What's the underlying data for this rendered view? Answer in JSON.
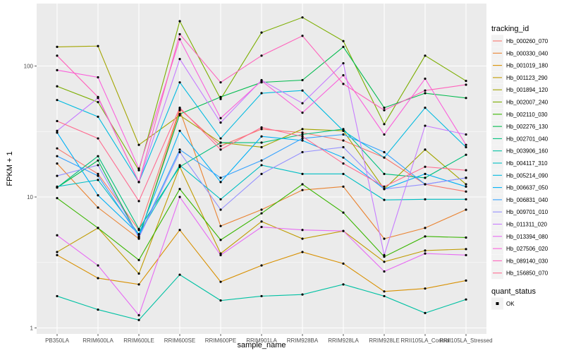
{
  "chart_data": {
    "type": "line",
    "title": "",
    "xlabel": "sample_name",
    "ylabel": "FPKM + 1",
    "y_scale": "log10",
    "ylim": [
      0.9,
      300
    ],
    "y_ticks": [
      1,
      10,
      100
    ],
    "y_tick_labels": [
      "1",
      "10",
      "100"
    ],
    "grid": true,
    "background": "#ebebeb",
    "legend_position": "right",
    "categories": [
      "PB350LA",
      "RRIM600LA",
      "RRIM600LE",
      "RRIM600SE",
      "RRIM600PE",
      "RRIM901LA",
      "RRIM928BA",
      "RRIM928LA",
      "RRIM928LE",
      "RRII105LA_Control",
      "RRII105LA_Stressed"
    ],
    "x_tick_labels": [
      "PB350LA",
      "RRIM600LA",
      "RRIM600LE",
      "RRIM600SE",
      "RRIM600PE",
      "RRIM901LA",
      "RRIM928BA",
      "RRIM928LA",
      "RRIM928LE",
      "RRII105LA_Control",
      "RRII105LA_Stressed"
    ],
    "legend": {
      "title": "tracking_id",
      "entries": [
        "Hb_000260_070",
        "Hb_000330_040",
        "Hb_001019_180",
        "Hb_001123_290",
        "Hb_001894_120",
        "Hb_002007_240",
        "Hb_002110_030",
        "Hb_002276_130",
        "Hb_002701_040",
        "Hb_003906_160",
        "Hb_004117_310",
        "Hb_005214_090",
        "Hb_006637_050",
        "Hb_006831_040",
        "Hb_009701_010",
        "Hb_011311_020",
        "Hb_013394_080",
        "Hb_027506_020",
        "Hb_089140_030",
        "Hb_156850_070"
      ]
    },
    "shape_legend": {
      "title": "quant_status",
      "entries": [
        "OK"
      ]
    },
    "series": [
      {
        "name": "Hb_000260_070",
        "color": "#F8766D",
        "values": [
          23.5,
          15,
          5.6,
          47,
          24.5,
          33,
          31,
          27,
          20,
          12.5,
          11
        ]
      },
      {
        "name": "Hb_000330_040",
        "color": "#EA8331",
        "values": [
          18,
          8.3,
          4.8,
          46,
          6,
          8,
          11.3,
          12,
          4.8,
          5.8,
          8
        ]
      },
      {
        "name": "Hb_001019_180",
        "color": "#D89000",
        "values": [
          3.6,
          2.4,
          2.15,
          5.6,
          2.25,
          3,
          3.8,
          3.1,
          1.9,
          2,
          2.3
        ]
      },
      {
        "name": "Hb_001123_290",
        "color": "#C09B00",
        "values": [
          3.8,
          5.8,
          2.6,
          17,
          3.7,
          6.5,
          4.8,
          5.5,
          3.2,
          3.9,
          4
        ]
      },
      {
        "name": "Hb_001894_120",
        "color": "#A3A500",
        "values": [
          140,
          142,
          25,
          42,
          26,
          24,
          33,
          32,
          11.5,
          23,
          12.5
        ]
      },
      {
        "name": "Hb_002007_240",
        "color": "#7CAE00",
        "values": [
          70,
          53,
          16,
          220,
          56,
          180,
          235,
          155,
          36,
          120,
          77
        ]
      },
      {
        "name": "Hb_002110_030",
        "color": "#39B600",
        "values": [
          9.8,
          5.8,
          3.3,
          11.5,
          4.7,
          7.5,
          12.5,
          7.6,
          3.5,
          5,
          4.9
        ]
      },
      {
        "name": "Hb_002276_130",
        "color": "#00BB4E",
        "values": [
          11.8,
          19,
          4.9,
          43,
          58,
          75,
          78,
          140,
          48,
          62,
          57
        ]
      },
      {
        "name": "Hb_002701_040",
        "color": "#00BF7D",
        "values": [
          11.8,
          20.5,
          5.7,
          17,
          26,
          26,
          30,
          33,
          15,
          14,
          21
        ]
      },
      {
        "name": "Hb_003906_160",
        "color": "#00C1A3",
        "values": [
          1.75,
          1.38,
          1.15,
          2.55,
          1.62,
          1.75,
          1.8,
          2.15,
          1.75,
          1.3,
          1.65
        ]
      },
      {
        "name": "Hb_004117_310",
        "color": "#00BFC4",
        "values": [
          12,
          13.5,
          5.2,
          17.5,
          9.6,
          17.5,
          15,
          15,
          9.5,
          9.6,
          9.6
        ]
      },
      {
        "name": "Hb_005214_090",
        "color": "#00BAE0",
        "values": [
          55,
          41,
          13,
          75,
          28,
          62,
          65,
          32,
          20,
          48,
          24
        ]
      },
      {
        "name": "Hb_006637_050",
        "color": "#00B0F6",
        "values": [
          31,
          10.3,
          5.2,
          32,
          13,
          29,
          27,
          20,
          11.5,
          15,
          12
        ]
      },
      {
        "name": "Hb_006831_040",
        "color": "#35A2FF",
        "values": [
          20.5,
          14.5,
          5,
          23,
          14,
          19,
          28,
          30,
          22,
          12.5,
          14
        ]
      },
      {
        "name": "Hb_009701_010",
        "color": "#9590FF",
        "values": [
          14.5,
          17.5,
          4.9,
          22,
          8,
          15,
          22,
          24,
          11.5,
          12.5,
          14
        ]
      },
      {
        "name": "Hb_011311_020",
        "color": "#C77CFF",
        "values": [
          32,
          57,
          13,
          113,
          37,
          78,
          52,
          105,
          3.6,
          35,
          30
        ]
      },
      {
        "name": "Hb_013394_080",
        "color": "#E76BF3",
        "values": [
          5.1,
          3,
          1.25,
          10,
          3.6,
          5.9,
          5.6,
          5.5,
          2.7,
          3.7,
          3.6
        ]
      },
      {
        "name": "Hb_027506_020",
        "color": "#FA62DB",
        "values": [
          93,
          82,
          16.5,
          160,
          40,
          77,
          44,
          85,
          30,
          80,
          25
        ]
      },
      {
        "name": "Hb_089140_030",
        "color": "#FF62BC",
        "values": [
          120,
          58,
          13,
          175,
          75,
          120,
          170,
          73,
          46,
          65,
          72
        ]
      },
      {
        "name": "Hb_156850_070",
        "color": "#FF6C91",
        "values": [
          38,
          28,
          9.3,
          48,
          23,
          34,
          29,
          18,
          12,
          17,
          16
        ]
      }
    ]
  }
}
